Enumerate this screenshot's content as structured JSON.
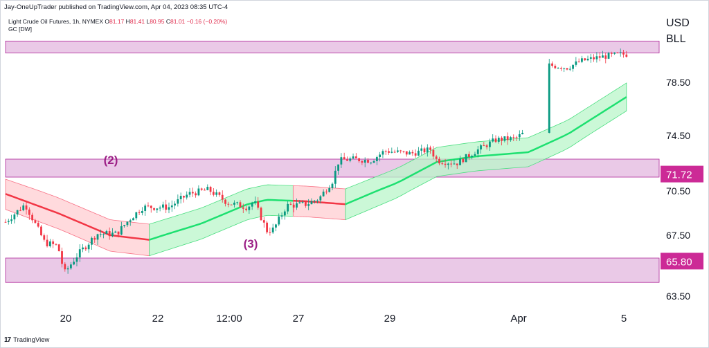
{
  "header": {
    "publisher_line": "Jay-OneUpTrader published on TradingView.com, Apr 04, 2023 08:35 UTC-4",
    "symbol_name": "Light Crude Oil Futures, 1h, NYMEX",
    "open_label": "O",
    "open_value": "81.17",
    "high_label": "H",
    "high_value": "81.41",
    "low_label": "L",
    "low_value": "80.95",
    "close_label": "C",
    "close_value": "81.01",
    "change": "−0.16 (−0.20%)",
    "indicator": "GC [DW]"
  },
  "footer": {
    "logo_text": "TradingView"
  },
  "colors": {
    "up": "#089981",
    "down": "#f23645",
    "zone_fill": "#e6bfe3",
    "zone_border": "#b0279a",
    "band_green_fill": "#b9f6ca",
    "band_red_fill": "#ffcdd2",
    "line_green": "#1de070",
    "line_red": "#f23645",
    "annotation": "#9c1f86",
    "tag_bg": "#cc2a96"
  },
  "chart_data": {
    "type": "candlestick",
    "currency": "USD",
    "unit": "BLL",
    "y_ticks": [
      "78.50",
      "74.50",
      "70.50",
      "67.50",
      "63.50"
    ],
    "x_ticks": [
      "20",
      "22",
      "12:00",
      "27",
      "29",
      "Apr",
      "5"
    ],
    "price_tags": [
      "71.72",
      "65.80"
    ],
    "zones": [
      {
        "top": 81.6,
        "bottom": 80.7
      },
      {
        "top": 72.8,
        "bottom": 71.5
      },
      {
        "top": 66.0,
        "bottom": 64.4
      }
    ],
    "annotations": [
      "(2)",
      "(3)"
    ],
    "close_path": [
      [
        0,
        68.4
      ],
      [
        0.03,
        69.6
      ],
      [
        0.06,
        67.0
      ],
      [
        0.08,
        66.8
      ],
      [
        0.09,
        65.0
      ],
      [
        0.11,
        66.2
      ],
      [
        0.14,
        67.6
      ],
      [
        0.17,
        67.6
      ],
      [
        0.19,
        68.6
      ],
      [
        0.21,
        69.4
      ],
      [
        0.25,
        69.4
      ],
      [
        0.28,
        70.3
      ],
      [
        0.31,
        70.6
      ],
      [
        0.34,
        69.7
      ],
      [
        0.37,
        69.4
      ],
      [
        0.38,
        69.8
      ],
      [
        0.4,
        67.8
      ],
      [
        0.41,
        67.9
      ],
      [
        0.43,
        69.5
      ],
      [
        0.46,
        69.6
      ],
      [
        0.48,
        70.0
      ],
      [
        0.5,
        71.2
      ],
      [
        0.51,
        72.7
      ],
      [
        0.53,
        72.8
      ],
      [
        0.56,
        72.7
      ],
      [
        0.58,
        73.4
      ],
      [
        0.62,
        73.2
      ],
      [
        0.65,
        73.5
      ],
      [
        0.66,
        72.7
      ],
      [
        0.69,
        72.5
      ],
      [
        0.72,
        73.4
      ],
      [
        0.75,
        74.2
      ],
      [
        0.78,
        74.3
      ],
      [
        0.8,
        74.9
      ],
      [
        0.82,
        75.2
      ],
      [
        0.83,
        79.8
      ],
      [
        0.86,
        79.6
      ],
      [
        0.88,
        80.1
      ],
      [
        0.91,
        80.4
      ],
      [
        0.94,
        80.6
      ],
      [
        0.95,
        80.6
      ]
    ],
    "ma_center": [
      [
        0,
        70.3
      ],
      [
        0.08,
        69.0
      ],
      [
        0.16,
        67.5
      ],
      [
        0.22,
        67.2
      ],
      [
        0.3,
        68.3
      ],
      [
        0.37,
        69.6
      ],
      [
        0.4,
        69.9
      ],
      [
        0.46,
        69.8
      ],
      [
        0.52,
        69.6
      ],
      [
        0.6,
        71.1
      ],
      [
        0.66,
        72.6
      ],
      [
        0.72,
        73.0
      ],
      [
        0.8,
        73.3
      ],
      [
        0.86,
        74.6
      ],
      [
        0.95,
        77.4
      ]
    ],
    "ma_segments": [
      {
        "from": 0.0,
        "to": 0.22,
        "color": "red"
      },
      {
        "from": 0.22,
        "to": 0.44,
        "color": "green"
      },
      {
        "from": 0.44,
        "to": 0.52,
        "color": "red"
      },
      {
        "from": 0.52,
        "to": 0.95,
        "color": "green"
      }
    ]
  }
}
